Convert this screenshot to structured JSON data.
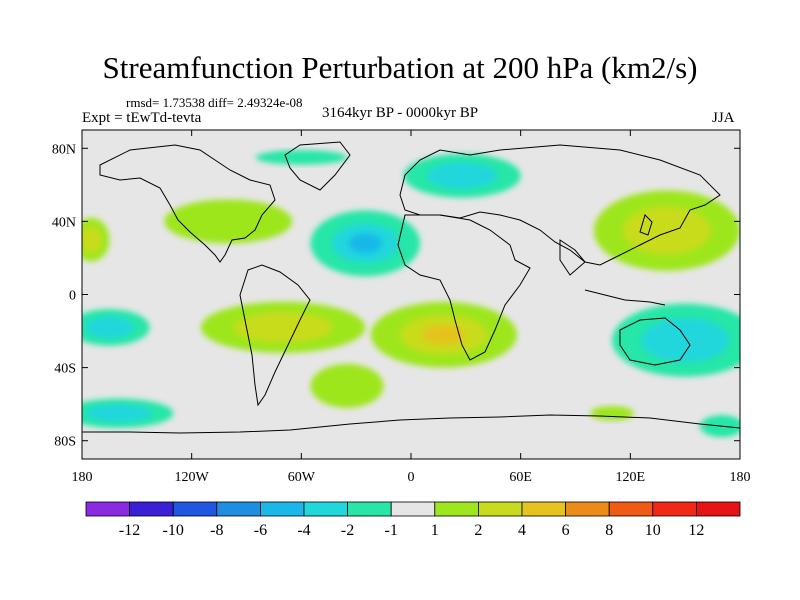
{
  "chart_data": {
    "type": "heatmap",
    "title": "Streamfunction Perturbation at 200 hPa (km2/s)",
    "stats_text": "rmsd= 1.73538 diff= 2.49324e-08",
    "left_label": "Expt = tEwTd-tevta",
    "center_label": "3164kyr BP - 0000kyr BP",
    "right_label": "JJA",
    "units": "km2/s",
    "x_range": [
      -180,
      180
    ],
    "y_range": [
      -90,
      90
    ],
    "x_ticks": [
      {
        "value": -180,
        "label": "180"
      },
      {
        "value": -120,
        "label": "120W"
      },
      {
        "value": -60,
        "label": "60W"
      },
      {
        "value": 0,
        "label": "0"
      },
      {
        "value": 60,
        "label": "60E"
      },
      {
        "value": 120,
        "label": "120E"
      },
      {
        "value": 180,
        "label": "180"
      }
    ],
    "y_ticks": [
      {
        "value": 80,
        "label": "80N"
      },
      {
        "value": 40,
        "label": "40N"
      },
      {
        "value": 0,
        "label": "0"
      },
      {
        "value": -40,
        "label": "40S"
      },
      {
        "value": -80,
        "label": "80S"
      }
    ],
    "colorbar": {
      "levels": [
        -12,
        -10,
        -8,
        -6,
        -4,
        -2,
        -1,
        1,
        2,
        4,
        6,
        8,
        10,
        12
      ],
      "labels": [
        "-12",
        "-10",
        "-8",
        "-6",
        "-4",
        "-2",
        "-1",
        "1",
        "2",
        "4",
        "6",
        "8",
        "10",
        "12"
      ],
      "colors": [
        "#8a2be2",
        "#3b1fd6",
        "#1f57e0",
        "#1e8fe0",
        "#19b8e8",
        "#20d7dc",
        "#27e6a8",
        "#e6e6e6",
        "#9ee61e",
        "#c8dc1e",
        "#e6c31e",
        "#eb8c19",
        "#f05a14",
        "#f02814",
        "#e61414"
      ]
    },
    "anomalies": [
      {
        "lon": -100,
        "lat": 40,
        "value": 1.5,
        "rlon": 35,
        "rlat": 12
      },
      {
        "lon": -25,
        "lat": 28,
        "value": -4.2,
        "rlon": 30,
        "rlat": 18
      },
      {
        "lon": -60,
        "lat": 75,
        "value": -1.5,
        "rlon": 25,
        "rlat": 4
      },
      {
        "lon": 28,
        "lat": 65,
        "value": -2.8,
        "rlon": 32,
        "rlat": 12
      },
      {
        "lon": 140,
        "lat": 35,
        "value": 2.8,
        "rlon": 40,
        "rlat": 22
      },
      {
        "lon": -175,
        "lat": 30,
        "value": 2.0,
        "rlon": 10,
        "rlat": 12
      },
      {
        "lon": -165,
        "lat": -18,
        "value": -3.5,
        "rlon": 22,
        "rlat": 10
      },
      {
        "lon": -70,
        "lat": -18,
        "value": 3.2,
        "rlon": 45,
        "rlat": 14
      },
      {
        "lon": 18,
        "lat": -22,
        "value": 4.5,
        "rlon": 40,
        "rlat": 18
      },
      {
        "lon": -35,
        "lat": -50,
        "value": 1.5,
        "rlon": 20,
        "rlat": 12
      },
      {
        "lon": 150,
        "lat": -25,
        "value": -3.2,
        "rlon": 40,
        "rlat": 20
      },
      {
        "lon": -160,
        "lat": -65,
        "value": -2.8,
        "rlon": 30,
        "rlat": 8
      },
      {
        "lon": 110,
        "lat": -65,
        "value": 1.5,
        "rlon": 12,
        "rlat": 4
      },
      {
        "lon": 170,
        "lat": -72,
        "value": -2.0,
        "rlon": 12,
        "rlat": 6
      }
    ]
  }
}
